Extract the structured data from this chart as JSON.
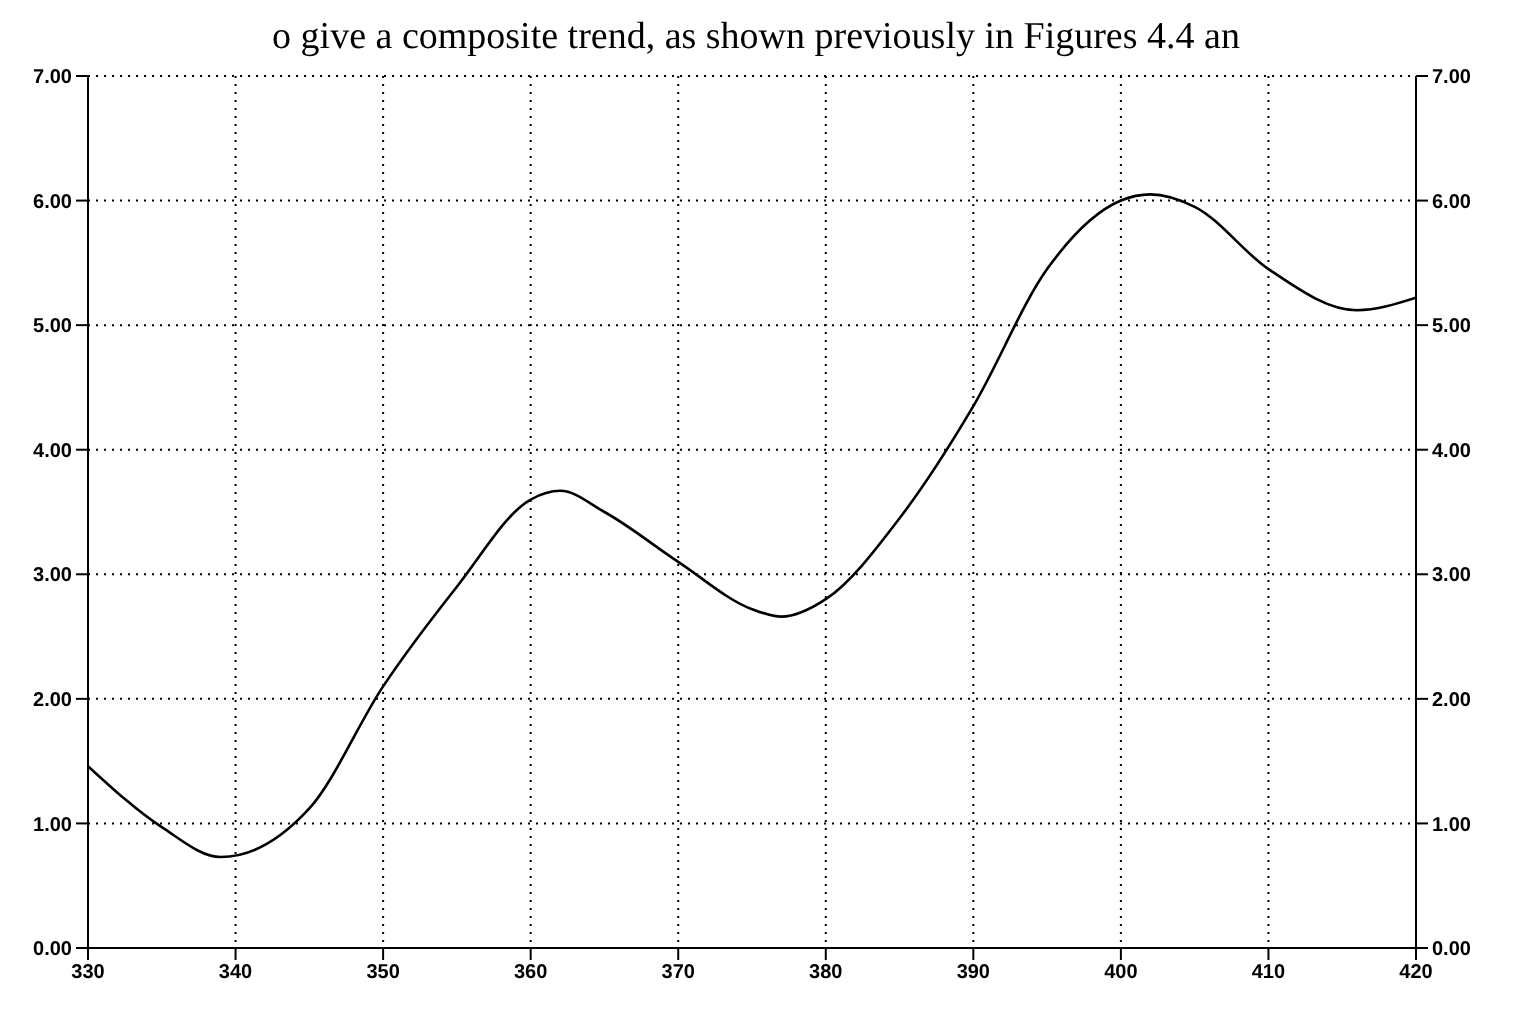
{
  "chart_data": {
    "type": "line",
    "annotations": [
      "o give a composite trend, as shown previously in Figures 4.4 an"
    ],
    "x": [
      330,
      335,
      339,
      345,
      350,
      355,
      360,
      362,
      365,
      370,
      375,
      377,
      380,
      385,
      390,
      395,
      400,
      402,
      405,
      410,
      416,
      420
    ],
    "series": [
      {
        "color": "#000000",
        "values": [
          1.46,
          0.97,
          0.73,
          1.12,
          2.1,
          2.9,
          3.6,
          3.67,
          3.5,
          3.1,
          2.72,
          2.66,
          2.8,
          3.45,
          4.35,
          5.45,
          6.0,
          6.05,
          5.95,
          5.45,
          5.12,
          5.22
        ]
      }
    ],
    "xlim": [
      330,
      420
    ],
    "xticks": [
      330,
      340,
      350,
      360,
      370,
      380,
      390,
      400,
      410,
      420
    ],
    "ylim": [
      0,
      7
    ],
    "yticks": [
      {
        "value": 0,
        "label": "0.00"
      },
      {
        "value": 1,
        "label": "1.00"
      },
      {
        "value": 2,
        "label": "2.00"
      },
      {
        "value": 3,
        "label": "3.00"
      },
      {
        "value": 4,
        "label": "4.00"
      },
      {
        "value": 5,
        "label": "5.00"
      },
      {
        "value": 6,
        "label": "6.00"
      },
      {
        "value": 7,
        "label": "7.00"
      }
    ],
    "y2lim": [
      0,
      7
    ],
    "y2ticks": [
      {
        "value": 0,
        "label": "0.00"
      },
      {
        "value": 1,
        "label": "1.00"
      },
      {
        "value": 2,
        "label": "2.00"
      },
      {
        "value": 3,
        "label": "3.00"
      },
      {
        "value": 4,
        "label": "4.00"
      },
      {
        "value": 5,
        "label": "5.00"
      },
      {
        "value": 6,
        "label": "6.00"
      },
      {
        "value": 7,
        "label": "7.00"
      }
    ],
    "grid": true,
    "marker": "none",
    "line_style": "solid"
  }
}
